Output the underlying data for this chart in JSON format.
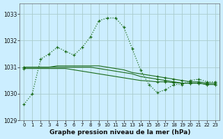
{
  "title": "Graphe pression niveau de la mer (hPa)",
  "bg_color": "#cceeff",
  "grid_color": "#aacccc",
  "line_color": "#1a6b1a",
  "xlim": [
    -0.5,
    23.5
  ],
  "ylim": [
    1029.0,
    1033.4
  ],
  "yticks": [
    1029,
    1030,
    1031,
    1032,
    1033
  ],
  "xticks": [
    0,
    1,
    2,
    3,
    4,
    5,
    6,
    7,
    8,
    9,
    10,
    11,
    12,
    13,
    14,
    15,
    16,
    17,
    18,
    19,
    20,
    21,
    22,
    23
  ],
  "series": [
    {
      "linestyle": "dotted",
      "x": [
        0,
        1,
        2,
        3,
        4,
        5,
        6,
        7,
        8,
        9,
        10,
        11,
        12,
        13,
        14,
        15,
        16,
        17,
        18,
        19,
        20,
        21,
        22,
        23
      ],
      "y": [
        1029.6,
        1030.0,
        1031.3,
        1031.5,
        1031.75,
        1031.6,
        1031.45,
        1031.75,
        1032.15,
        1032.75,
        1032.85,
        1032.85,
        1032.5,
        1031.7,
        1030.9,
        1030.35,
        1030.05,
        1030.15,
        1030.35,
        1030.35,
        1030.5,
        1030.55,
        1030.45,
        1030.45
      ]
    },
    {
      "linestyle": "solid",
      "x": [
        0,
        1,
        2,
        3,
        4,
        5,
        6,
        7,
        8,
        9,
        10,
        11,
        12,
        13,
        14,
        15,
        16,
        17,
        18,
        19,
        20,
        21,
        22,
        23
      ],
      "y": [
        1031.0,
        1031.0,
        1031.0,
        1031.0,
        1031.05,
        1031.05,
        1031.05,
        1031.05,
        1031.05,
        1031.05,
        1031.0,
        1030.95,
        1030.9,
        1030.8,
        1030.75,
        1030.7,
        1030.65,
        1030.6,
        1030.55,
        1030.5,
        1030.45,
        1030.45,
        1030.4,
        1030.4
      ]
    },
    {
      "linestyle": "solid",
      "x": [
        0,
        1,
        2,
        3,
        4,
        5,
        6,
        7,
        8,
        9,
        10,
        11,
        12,
        13,
        14,
        15,
        16,
        17,
        18,
        19,
        20,
        21,
        22,
        23
      ],
      "y": [
        1031.0,
        1031.0,
        1031.0,
        1031.0,
        1031.0,
        1031.0,
        1031.0,
        1031.0,
        1031.0,
        1030.95,
        1030.9,
        1030.85,
        1030.8,
        1030.75,
        1030.65,
        1030.6,
        1030.55,
        1030.5,
        1030.45,
        1030.4,
        1030.4,
        1030.4,
        1030.35,
        1030.35
      ]
    },
    {
      "linestyle": "solid",
      "x": [
        0,
        1,
        2,
        3,
        4,
        5,
        6,
        7,
        8,
        9,
        10,
        11,
        12,
        13,
        14,
        15,
        16,
        17,
        18,
        19,
        20,
        21,
        22,
        23
      ],
      "y": [
        1030.95,
        1030.95,
        1030.95,
        1030.95,
        1030.95,
        1030.95,
        1030.9,
        1030.85,
        1030.8,
        1030.75,
        1030.7,
        1030.65,
        1030.6,
        1030.55,
        1030.5,
        1030.48,
        1030.45,
        1030.45,
        1030.42,
        1030.4,
        1030.4,
        1030.4,
        1030.35,
        1030.35
      ]
    }
  ]
}
